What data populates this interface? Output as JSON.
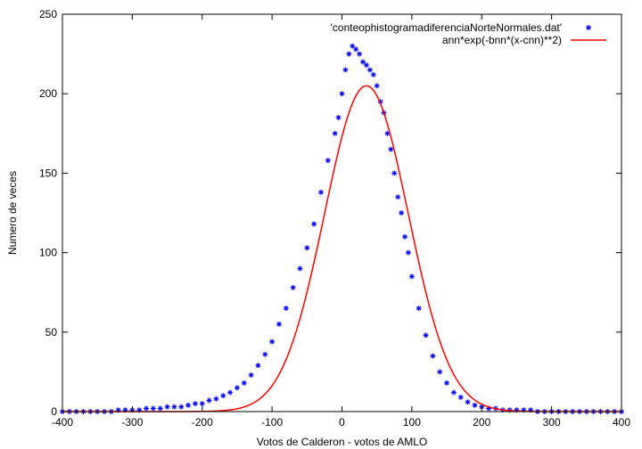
{
  "chart_data": {
    "type": "scatter",
    "xlabel": "Votos de Calderon - votos de AMLO",
    "ylabel": "Numero de veces",
    "xlim": [
      -400,
      400
    ],
    "ylim": [
      0,
      250
    ],
    "xticks": [
      -400,
      -300,
      -200,
      -100,
      0,
      100,
      200,
      300,
      400
    ],
    "yticks": [
      0,
      50,
      100,
      150,
      200,
      250
    ],
    "grid": false,
    "legend_position": "top-right",
    "colors": {
      "data": "#0000ff",
      "fit": "#ff0000",
      "axes": "#000000"
    },
    "series": [
      {
        "name": "'conteophistogramadiferenciaNorteNormales.dat'",
        "kind": "points",
        "marker": "asterisk",
        "x": [
          -400,
          -390,
          -380,
          -370,
          -360,
          -350,
          -340,
          -330,
          -320,
          -310,
          -300,
          -290,
          -280,
          -270,
          -260,
          -250,
          -240,
          -230,
          -220,
          -210,
          -200,
          -190,
          -180,
          -170,
          -160,
          -150,
          -140,
          -130,
          -120,
          -110,
          -100,
          -90,
          -80,
          -70,
          -60,
          -50,
          -40,
          -30,
          -20,
          -10,
          -5,
          0,
          5,
          10,
          15,
          20,
          25,
          30,
          35,
          40,
          45,
          50,
          55,
          60,
          65,
          70,
          75,
          80,
          85,
          90,
          95,
          100,
          110,
          120,
          130,
          140,
          150,
          160,
          170,
          180,
          190,
          200,
          210,
          220,
          230,
          240,
          250,
          260,
          270,
          280,
          290,
          300,
          310,
          320,
          330,
          340,
          350,
          360,
          370,
          380,
          390,
          400
        ],
        "y": [
          0,
          0,
          0,
          0,
          0,
          0,
          0,
          0,
          1,
          1,
          1,
          1,
          2,
          2,
          2,
          3,
          3,
          3,
          4,
          5,
          5,
          7,
          8,
          10,
          12,
          15,
          18,
          23,
          29,
          36,
          44,
          55,
          65,
          78,
          90,
          103,
          118,
          138,
          158,
          175,
          185,
          200,
          215,
          225,
          230,
          228,
          225,
          220,
          218,
          215,
          212,
          205,
          195,
          188,
          175,
          165,
          150,
          135,
          125,
          110,
          100,
          85,
          65,
          48,
          35,
          25,
          18,
          12,
          9,
          6,
          4,
          3,
          2,
          2,
          1,
          1,
          1,
          1,
          1,
          0,
          0,
          0,
          0,
          0,
          0,
          0,
          0,
          0,
          0,
          0,
          0,
          0
        ]
      },
      {
        "name": "ann*exp(-bnn*(x-cnn)**2)",
        "kind": "line",
        "peak": 205,
        "center": 35,
        "sigma": 60
      }
    ]
  }
}
